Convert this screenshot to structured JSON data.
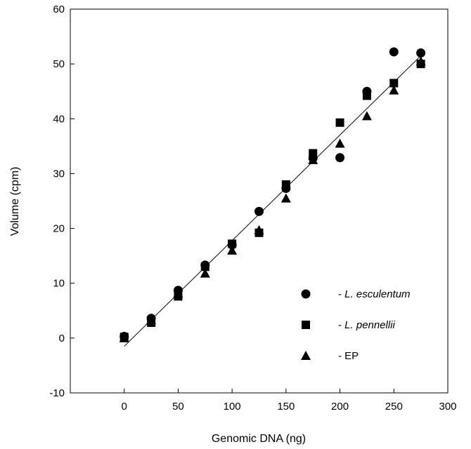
{
  "chart_data": {
    "type": "scatter",
    "title": "",
    "xlabel": "Genomic  DNA  (ng)",
    "ylabel": "Volume  (cpm)",
    "xlim": [
      -50,
      300
    ],
    "ylim": [
      -10,
      60
    ],
    "xticks": [
      0,
      50,
      100,
      150,
      200,
      250,
      300
    ],
    "yticks": [
      -10,
      0,
      10,
      20,
      30,
      40,
      50,
      60
    ],
    "grid": false,
    "legend_position": "bottom-right",
    "series": [
      {
        "name": "- L. esculentum",
        "marker": "circle",
        "x": [
          0,
          25,
          50,
          75,
          100,
          125,
          150,
          175,
          200,
          225,
          250,
          275
        ],
        "y": [
          0.3,
          3.6,
          8.7,
          13.3,
          17.0,
          23.1,
          27.3,
          32.8,
          32.9,
          45.0,
          52.2,
          52.0
        ]
      },
      {
        "name": "- L. pennellii",
        "marker": "square",
        "x": [
          0,
          25,
          50,
          75,
          100,
          125,
          150,
          175,
          200,
          225,
          250,
          275
        ],
        "y": [
          0.2,
          2.8,
          7.6,
          13.0,
          17.2,
          19.2,
          28.0,
          33.7,
          39.3,
          44.2,
          46.5,
          50.0
        ]
      },
      {
        "name": "- EP",
        "marker": "triangle",
        "x": [
          0,
          25,
          50,
          75,
          100,
          125,
          150,
          175,
          200,
          225,
          250,
          275
        ],
        "y": [
          0.0,
          3.3,
          8.2,
          11.8,
          16.0,
          19.7,
          25.5,
          32.5,
          35.5,
          40.5,
          45.2,
          50.5
        ]
      }
    ],
    "fit_line": {
      "x": [
        0,
        275
      ],
      "y": [
        -1.5,
        51.5
      ]
    },
    "colors": {
      "marker": "#000000",
      "axis": "#000000",
      "background": "#ffffff"
    }
  }
}
